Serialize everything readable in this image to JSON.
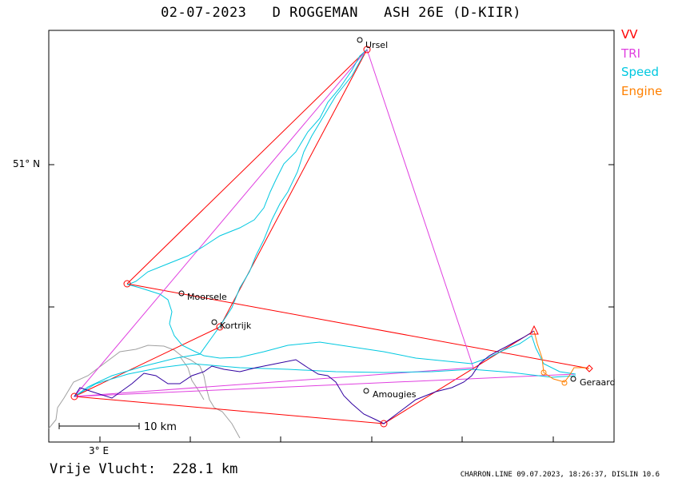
{
  "title": "02-07-2023   D ROGGEMAN   ASH 26E (D-KIIR)",
  "legend": [
    {
      "label": "VV",
      "color": "#ff0000"
    },
    {
      "label": "TRI",
      "color": "#e040e0"
    },
    {
      "label": "Speed",
      "color": "#00c8e0"
    },
    {
      "label": "Engine",
      "color": "#ff8000"
    }
  ],
  "axes": {
    "lat_label": "51° N",
    "lon_label": "3° E"
  },
  "scale": {
    "label": "10 km"
  },
  "distance": "Vrije Vlucht:  228.1 km",
  "footer": "CHARRON.LINE 09.07.2023, 18:26:37, DISLIN 10.6",
  "places": [
    {
      "name": "Ursel"
    },
    {
      "name": "Moorsele"
    },
    {
      "name": "Kortrijk"
    },
    {
      "name": "Amougies"
    },
    {
      "name": "Geraard"
    }
  ],
  "colors": {
    "vv": "#ff0000",
    "tri": "#e040e0",
    "speed": "#00c8e0",
    "engine": "#ff8000",
    "track_low": "#3000a0",
    "border": "#a0a0a0"
  }
}
